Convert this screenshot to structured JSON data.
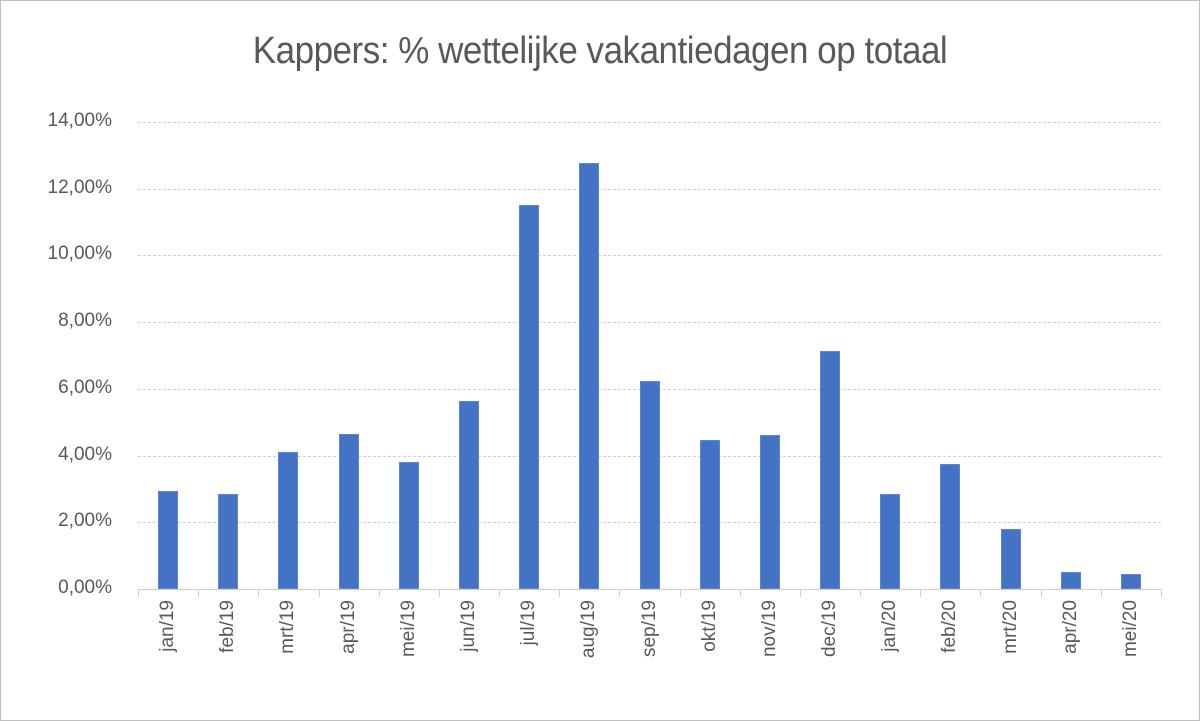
{
  "chart_data": {
    "type": "bar",
    "title": "Kappers: % wettelijke vakantiedagen op totaal",
    "xlabel": "",
    "ylabel": "",
    "categories": [
      "jan/19",
      "feb/19",
      "mrt/19",
      "apr/19",
      "mei/19",
      "jun/19",
      "jul/19",
      "aug/19",
      "sep/19",
      "okt/19",
      "nov/19",
      "dec/19",
      "jan/20",
      "feb/20",
      "mrt/20",
      "apr/20",
      "mei/20"
    ],
    "values": [
      2.94,
      2.85,
      4.12,
      4.65,
      3.82,
      5.63,
      11.5,
      12.77,
      6.24,
      4.46,
      4.61,
      7.14,
      2.85,
      3.75,
      1.8,
      0.52,
      0.45
    ],
    "value_unit": "%",
    "ylim": [
      0,
      14
    ],
    "yticks": [
      "0,00%",
      "2,00%",
      "4,00%",
      "6,00%",
      "8,00%",
      "10,00%",
      "12,00%",
      "14,00%"
    ],
    "grid": true,
    "legend": null,
    "bar_color": "#4472c4"
  }
}
